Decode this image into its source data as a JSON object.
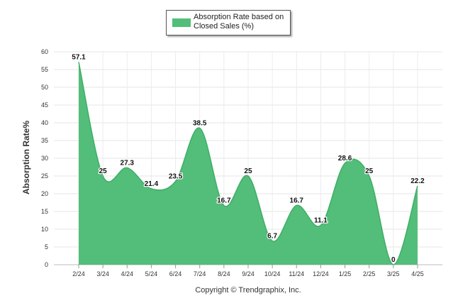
{
  "chart_data": {
    "type": "area",
    "categories": [
      "2/24",
      "3/24",
      "4/24",
      "5/24",
      "6/24",
      "7/24",
      "8/24",
      "9/24",
      "10/24",
      "11/24",
      "12/24",
      "1/25",
      "2/25",
      "3/25",
      "4/25"
    ],
    "series": [
      {
        "name": "Absorption Rate based on Closed Sales (%)",
        "values": [
          57.1,
          25,
          27.3,
          21.4,
          23.5,
          38.5,
          16.7,
          25,
          6.7,
          16.7,
          11.1,
          28.6,
          25,
          0,
          22.2
        ]
      }
    ],
    "data_labels": [
      "57.1",
      "25",
      "27.3",
      "21.4",
      "23.5",
      "38.5",
      "16.7",
      "25",
      "6.7",
      "16.7",
      "11.1",
      "28.6",
      "25",
      "0",
      "22.2"
    ],
    "ylabel": "Absorption Rate%",
    "ylim": [
      0,
      60
    ],
    "yticks": [
      0,
      5,
      10,
      15,
      20,
      25,
      30,
      35,
      40,
      45,
      50,
      55,
      60
    ],
    "grid": true,
    "legend_position": "top-center",
    "fill_color": "#52be79"
  },
  "legend": {
    "label": "Absorption Rate based on Closed Sales (%)"
  },
  "footer": {
    "copyright": "Copyright © Trendgraphix, Inc."
  }
}
